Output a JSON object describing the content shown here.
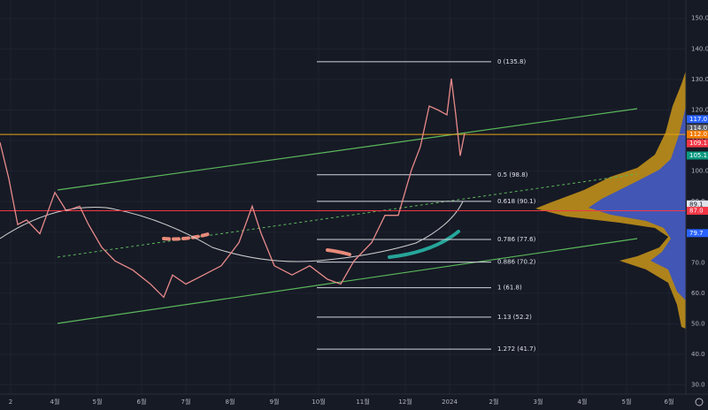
{
  "chart_data": {
    "type": "line",
    "color": "#e88a8a",
    "xlim": [
      -0.24,
      15.26
    ],
    "ylim": [
      27,
      156
    ],
    "xticks": [
      {
        "value": 0,
        "label": "2"
      },
      {
        "value": 1,
        "label": "4월"
      },
      {
        "value": 1.96,
        "label": "5월"
      },
      {
        "value": 2.96,
        "label": "6월"
      },
      {
        "value": 3.96,
        "label": "7월"
      },
      {
        "value": 4.96,
        "label": "8월"
      },
      {
        "value": 5.96,
        "label": "9월"
      },
      {
        "value": 6.96,
        "label": "10월"
      },
      {
        "value": 7.96,
        "label": "11월"
      },
      {
        "value": 8.92,
        "label": "12월"
      },
      {
        "value": 9.92,
        "label": "2024"
      },
      {
        "value": 10.92,
        "label": "2월"
      },
      {
        "value": 11.92,
        "label": "3월"
      },
      {
        "value": 12.92,
        "label": "4월"
      },
      {
        "value": 13.92,
        "label": "5월"
      },
      {
        "value": 14.88,
        "label": "6월"
      }
    ],
    "yticks": [
      {
        "value": 30,
        "label": "30.0"
      },
      {
        "value": 40,
        "label": "40.0"
      },
      {
        "value": 50,
        "label": "50.0"
      },
      {
        "value": 60,
        "label": "60.0"
      },
      {
        "value": 70,
        "label": "70.0"
      },
      {
        "value": 80,
        "label": "80.0"
      },
      {
        "value": 90,
        "label": "90.0"
      },
      {
        "value": 100,
        "label": "100.0"
      },
      {
        "value": 110,
        "label": "110.0"
      },
      {
        "value": 120,
        "label": "120.0"
      },
      {
        "value": 130,
        "label": "130.0"
      },
      {
        "value": 140,
        "label": "140.0"
      },
      {
        "value": 150,
        "label": "150.0"
      }
    ],
    "x": [
      -0.24,
      -0.04,
      0.16,
      0.36,
      0.66,
      1.0,
      1.26,
      1.56,
      1.76,
      2.06,
      2.36,
      2.76,
      3.16,
      3.46,
      3.66,
      3.96,
      4.36,
      4.76,
      5.16,
      5.46,
      5.66,
      5.96,
      6.36,
      6.76,
      7.16,
      7.46,
      7.76,
      8.16,
      8.46,
      8.76,
      9.06,
      9.26,
      9.46,
      9.66,
      9.86,
      9.96,
      10.06,
      10.16,
      10.26
    ],
    "values": [
      109.4,
      97.5,
      82.5,
      84,
      79.5,
      93,
      87,
      88.5,
      82.5,
      75,
      70.6,
      67.6,
      63,
      58.7,
      66,
      63,
      66,
      69,
      76.6,
      88.5,
      79.6,
      69,
      66,
      69,
      64.6,
      63,
      70.6,
      76.6,
      85.5,
      85.5,
      100.4,
      108,
      121.3,
      120,
      118.4,
      130.3,
      118.4,
      105,
      112.4
    ],
    "fib_levels": [
      {
        "value": 135.8,
        "label": "0 (135.8)"
      },
      {
        "value": 98.8,
        "label": "0.5 (98.8)"
      },
      {
        "value": 90.1,
        "label": "0.618 (90.1)"
      },
      {
        "value": 77.6,
        "label": "0.786 (77.6)"
      },
      {
        "value": 70.2,
        "label": "0.886 (70.2)"
      },
      {
        "value": 61.8,
        "label": "1 (61.8)"
      },
      {
        "value": 52.2,
        "label": "1.13 (52.2)"
      },
      {
        "value": 41.7,
        "label": "1.272 (41.7)"
      }
    ],
    "hlines": [
      {
        "value": 112,
        "color": "#e8a317"
      },
      {
        "value": 87,
        "color": "#f23645"
      }
    ],
    "price_tags": [
      {
        "value": 117,
        "label": "117.0",
        "color": "#2962ff"
      },
      {
        "value": 114,
        "label": "114.0",
        "color": "#5d606b"
      },
      {
        "value": 112,
        "label": "112.0",
        "color": "#f57c00"
      },
      {
        "value": 109.1,
        "label": "109.1",
        "color": "#f23645"
      },
      {
        "value": 105.1,
        "label": "105.1",
        "color": "#089981"
      },
      {
        "value": 89.1,
        "label": "89.1",
        "color": "#e0e3eb"
      },
      {
        "value": 87,
        "label": "87.0",
        "color": "#f23645"
      },
      {
        "value": 79.7,
        "label": "79.7",
        "color": "#2962ff"
      }
    ],
    "countdown": "01:01:5"
  }
}
